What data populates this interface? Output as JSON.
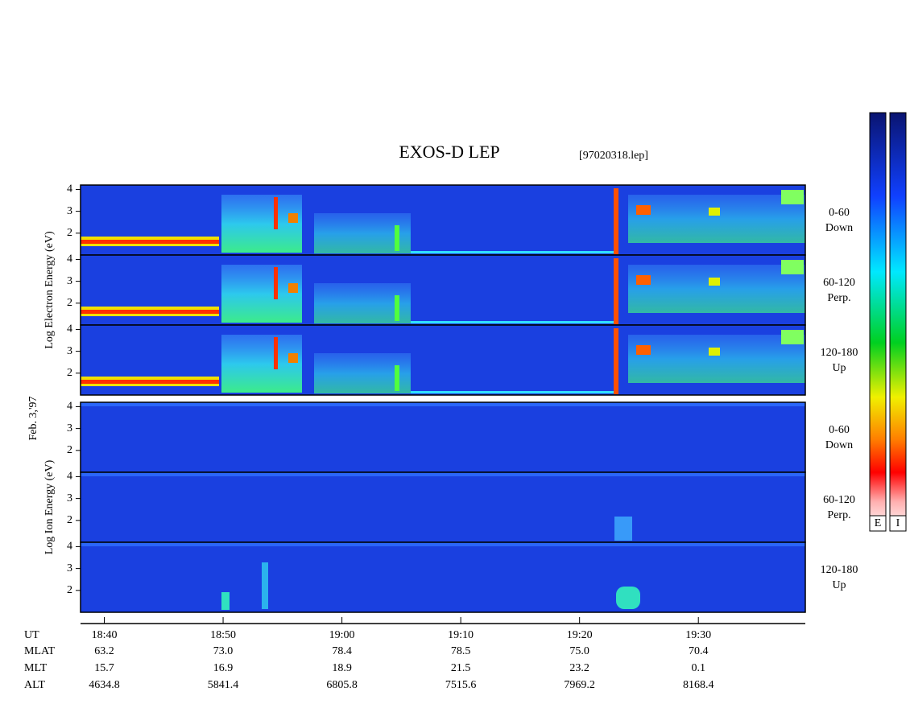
{
  "title": "EXOS-D LEP",
  "file": "[97020318.lep]",
  "date_label": "Feb. 3,'97",
  "xlim": [
    38,
    99
  ],
  "xticks": [
    {
      "value": 40,
      "label": "18:40"
    },
    {
      "value": 50,
      "label": "18:50"
    },
    {
      "value": 60,
      "label": "19:00"
    },
    {
      "value": 70,
      "label": "19:10"
    },
    {
      "value": 80,
      "label": "19:20"
    },
    {
      "value": 90,
      "label": "19:30"
    }
  ],
  "x_label": "UT",
  "groups": [
    {
      "ylabel": "Log Electron Energy (eV)",
      "ylim": [
        1,
        4.2
      ],
      "yticks": [
        2,
        3,
        4
      ],
      "panels": [
        {
          "label": [
            "0-60",
            "Down"
          ]
        },
        {
          "label": [
            "60-120",
            "Perp."
          ]
        },
        {
          "label": [
            "120-180",
            "Up"
          ]
        }
      ]
    },
    {
      "ylabel": "Log Ion Energy (eV)",
      "ylim": [
        1,
        4.2
      ],
      "yticks": [
        2,
        3,
        4
      ],
      "panels": [
        {
          "label": [
            "0-60",
            "Down"
          ]
        },
        {
          "label": [
            "60-120",
            "Perp."
          ]
        },
        {
          "label": [
            "120-180",
            "Up"
          ]
        }
      ]
    }
  ],
  "orbit": [
    {
      "label": "MLAT",
      "values": [
        "63.2",
        "73.0",
        "78.4",
        "78.5",
        "75.0",
        "70.4"
      ]
    },
    {
      "label": "MLT",
      "values": [
        "15.7",
        "16.9",
        "18.9",
        "21.5",
        "23.2",
        "0.1"
      ]
    },
    {
      "label": "ALT",
      "values": [
        "4634.8",
        "5841.4",
        "6805.8",
        "7515.6",
        "7969.2",
        "8168.4"
      ]
    }
  ],
  "colorbars": [
    "E",
    "I"
  ]
}
